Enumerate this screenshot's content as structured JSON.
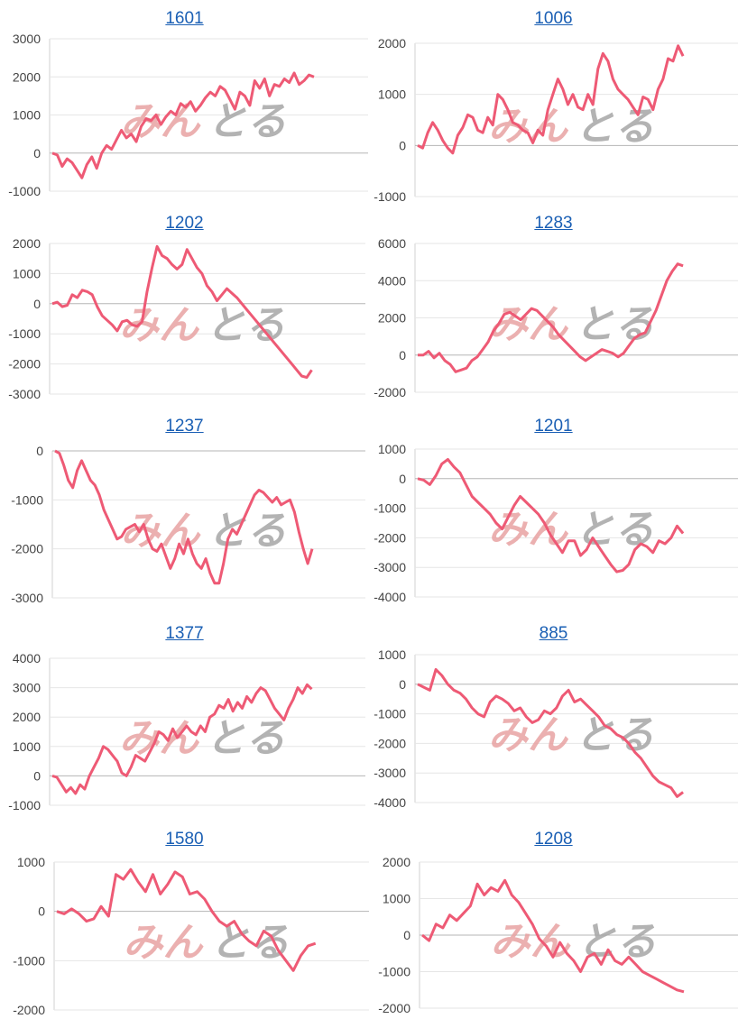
{
  "watermark": {
    "left": "みん",
    "right": "とる",
    "left_color": "#e8a3a3",
    "right_color": "#a6a6a6"
  },
  "line_color": "#ee5a75",
  "chart_data": [
    {
      "type": "line",
      "title": "1601",
      "ylim": [
        -1000,
        3000
      ],
      "yticks": [
        3000,
        2000,
        1000,
        0,
        -1000
      ],
      "values": [
        0,
        -50,
        -350,
        -150,
        -250,
        -450,
        -650,
        -300,
        -100,
        -400,
        0,
        200,
        100,
        350,
        600,
        400,
        500,
        300,
        700,
        900,
        850,
        1000,
        750,
        950,
        1100,
        1000,
        1300,
        1200,
        1350,
        1100,
        1250,
        1450,
        1600,
        1500,
        1750,
        1650,
        1400,
        1150,
        1600,
        1500,
        1250,
        1900,
        1700,
        1950,
        1500,
        1800,
        1750,
        1950,
        1850,
        2100,
        1800,
        1900,
        2050,
        2000
      ]
    },
    {
      "type": "line",
      "title": "1006",
      "ylim": [
        -1000,
        2000
      ],
      "yticks": [
        2000,
        1000,
        0,
        -1000
      ],
      "values": [
        0,
        -50,
        250,
        450,
        300,
        100,
        -50,
        -150,
        200,
        350,
        600,
        550,
        300,
        250,
        550,
        400,
        1000,
        900,
        700,
        450,
        400,
        300,
        250,
        50,
        300,
        200,
        700,
        1000,
        1300,
        1100,
        800,
        1000,
        750,
        700,
        1000,
        800,
        1500,
        1800,
        1650,
        1300,
        1100,
        1000,
        900,
        750,
        600,
        950,
        900,
        700,
        1100,
        1300,
        1700,
        1650,
        1950,
        1750
      ]
    },
    {
      "type": "line",
      "title": "1202",
      "ylim": [
        -3000,
        2000
      ],
      "yticks": [
        2000,
        1000,
        0,
        -1000,
        -2000,
        -3000
      ],
      "values": [
        0,
        50,
        -100,
        -50,
        300,
        200,
        450,
        400,
        300,
        -100,
        -400,
        -550,
        -700,
        -900,
        -600,
        -550,
        -700,
        -750,
        -600,
        400,
        1200,
        1900,
        1600,
        1500,
        1300,
        1150,
        1300,
        1800,
        1500,
        1200,
        1000,
        600,
        400,
        100,
        300,
        500,
        350,
        200,
        0,
        -200,
        -400,
        -600,
        -800,
        -1000,
        -1200,
        -1400,
        -1600,
        -1800,
        -2000,
        -2200,
        -2400,
        -2450,
        -2200
      ]
    },
    {
      "type": "line",
      "title": "1283",
      "ylim": [
        -2000,
        6000
      ],
      "yticks": [
        6000,
        4000,
        2000,
        0,
        -2000
      ],
      "values": [
        0,
        0,
        200,
        -150,
        100,
        -300,
        -500,
        -900,
        -800,
        -700,
        -300,
        -100,
        300,
        700,
        1300,
        1700,
        2200,
        2300,
        2100,
        1900,
        2200,
        2500,
        2400,
        2100,
        1800,
        1500,
        1100,
        800,
        500,
        200,
        -100,
        -300,
        -100,
        100,
        300,
        200,
        100,
        -100,
        100,
        500,
        900,
        1100,
        1200,
        1800,
        2400,
        3200,
        4000,
        4500,
        4900,
        4800
      ]
    },
    {
      "type": "line",
      "title": "1237",
      "ylim": [
        -3000,
        0
      ],
      "yticks": [
        0,
        -1000,
        -2000,
        -3000
      ],
      "values": [
        0,
        -50,
        -300,
        -600,
        -750,
        -400,
        -200,
        -400,
        -600,
        -700,
        -900,
        -1200,
        -1400,
        -1600,
        -1800,
        -1750,
        -1600,
        -1550,
        -1500,
        -1650,
        -1500,
        -1800,
        -2000,
        -2050,
        -1900,
        -2150,
        -2400,
        -2200,
        -1900,
        -2100,
        -1800,
        -2100,
        -2300,
        -2400,
        -2200,
        -2500,
        -2700,
        -2700,
        -2300,
        -1800,
        -1600,
        -1700,
        -1500,
        -1300,
        -1100,
        -900,
        -800,
        -850,
        -950,
        -1050,
        -950,
        -1100,
        -1050,
        -1000,
        -1250,
        -1650,
        -2000,
        -2300,
        -2000
      ]
    },
    {
      "type": "line",
      "title": "1201",
      "ylim": [
        -4000,
        1000
      ],
      "yticks": [
        1000,
        0,
        -1000,
        -2000,
        -3000,
        -4000
      ],
      "values": [
        0,
        -50,
        -200,
        100,
        500,
        650,
        400,
        200,
        -200,
        -600,
        -800,
        -1000,
        -1200,
        -1500,
        -1700,
        -1300,
        -900,
        -600,
        -800,
        -1000,
        -1200,
        -1500,
        -1900,
        -2200,
        -2500,
        -2100,
        -2100,
        -2600,
        -2400,
        -2000,
        -2300,
        -2600,
        -2900,
        -3150,
        -3100,
        -2900,
        -2400,
        -2200,
        -2300,
        -2500,
        -2100,
        -2200,
        -2000,
        -1600,
        -1850
      ]
    },
    {
      "type": "line",
      "title": "1377",
      "ylim": [
        -1000,
        4000
      ],
      "yticks": [
        4000,
        3000,
        2000,
        1000,
        0,
        -1000
      ],
      "values": [
        0,
        -50,
        -300,
        -550,
        -400,
        -600,
        -300,
        -450,
        0,
        300,
        600,
        1000,
        900,
        700,
        500,
        100,
        0,
        300,
        700,
        600,
        500,
        800,
        1100,
        1500,
        1400,
        1200,
        1600,
        1300,
        1500,
        1700,
        1500,
        1400,
        1700,
        1500,
        2000,
        2100,
        2400,
        2300,
        2600,
        2200,
        2500,
        2300,
        2700,
        2500,
        2800,
        3000,
        2900,
        2600,
        2300,
        2100,
        1900,
        2300,
        2600,
        3000,
        2800,
        3100,
        2950
      ]
    },
    {
      "type": "line",
      "title": "885",
      "ylim": [
        -4000,
        1000
      ],
      "yticks": [
        1000,
        0,
        -1000,
        -2000,
        -3000,
        -4000
      ],
      "values": [
        0,
        -100,
        -200,
        500,
        300,
        0,
        -200,
        -300,
        -500,
        -800,
        -1000,
        -1100,
        -600,
        -400,
        -500,
        -650,
        -900,
        -800,
        -1100,
        -1300,
        -1200,
        -900,
        -1000,
        -800,
        -400,
        -200,
        -600,
        -500,
        -700,
        -900,
        -1100,
        -1400,
        -1500,
        -1700,
        -1800,
        -2000,
        -2300,
        -2500,
        -2800,
        -3100,
        -3300,
        -3400,
        -3500,
        -3800,
        -3650
      ]
    },
    {
      "type": "line",
      "title": "1580",
      "ylim": [
        -2000,
        1000
      ],
      "yticks": [
        1000,
        0,
        -1000,
        -2000
      ],
      "values": [
        0,
        -50,
        50,
        -50,
        -200,
        -150,
        100,
        -100,
        750,
        650,
        850,
        600,
        400,
        750,
        350,
        550,
        800,
        700,
        350,
        400,
        250,
        0,
        -200,
        -300,
        -200,
        -450,
        -600,
        -700,
        -400,
        -500,
        -800,
        -1000,
        -1200,
        -900,
        -700,
        -650
      ]
    },
    {
      "type": "line",
      "title": "1208",
      "ylim": [
        -2000,
        2000
      ],
      "yticks": [
        2000,
        1000,
        0,
        -1000,
        -2000
      ],
      "values": [
        0,
        -150,
        300,
        200,
        550,
        400,
        600,
        800,
        1400,
        1100,
        1300,
        1200,
        1500,
        1100,
        900,
        600,
        300,
        -100,
        -300,
        -600,
        -200,
        -500,
        -700,
        -1000,
        -600,
        -500,
        -800,
        -400,
        -700,
        -800,
        -600,
        -800,
        -1000,
        -1100,
        -1200,
        -1300,
        -1400,
        -1500,
        -1550
      ]
    }
  ]
}
